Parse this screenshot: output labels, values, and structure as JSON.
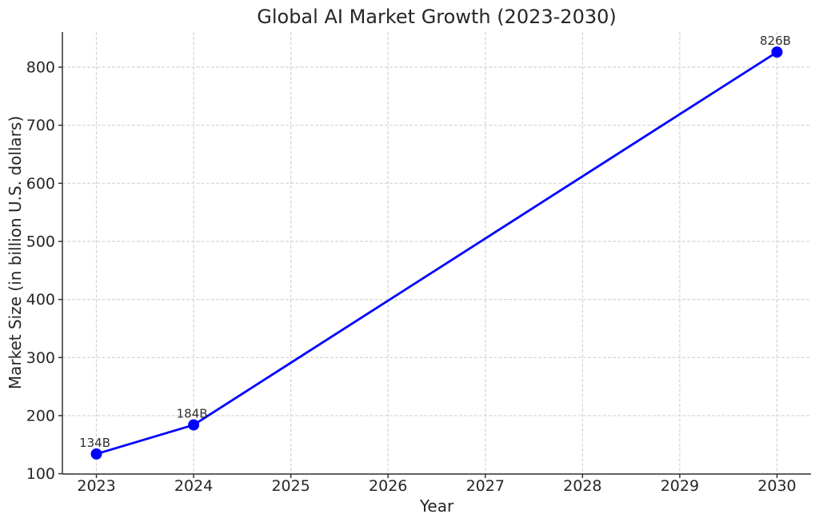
{
  "chart_data": {
    "type": "line",
    "title": "Global AI Market Growth (2023-2030)",
    "xlabel": "Year",
    "ylabel": "Market Size (in billion U.S. dollars)",
    "x": [
      2023,
      2024,
      2030
    ],
    "values": [
      134,
      184,
      826
    ],
    "point_labels": [
      "134B",
      "184B",
      "826B"
    ],
    "x_ticks": [
      2023,
      2024,
      2025,
      2026,
      2027,
      2028,
      2029,
      2030
    ],
    "y_ticks": [
      100,
      200,
      300,
      400,
      500,
      600,
      700,
      800
    ],
    "xlim": [
      2022.65,
      2030.35
    ],
    "ylim": [
      99.4,
      860.6
    ],
    "grid": true,
    "grid_style": "dashed",
    "legend": "none",
    "marker": "circle",
    "colors": {
      "line": "#0000ff",
      "marker": "#0000ff",
      "grid": "#d4d4d4",
      "spine": "#333333",
      "text": "#262626",
      "background": "#ffffff"
    }
  }
}
